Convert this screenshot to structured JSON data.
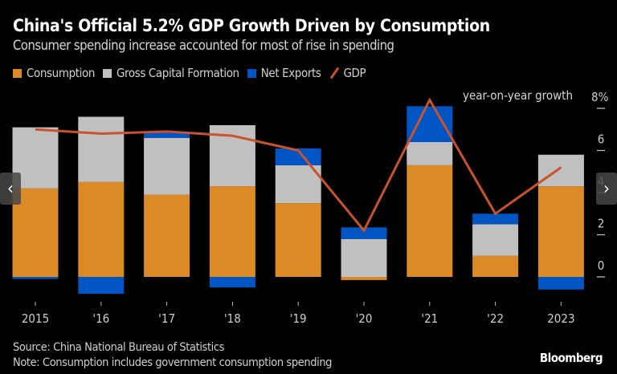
{
  "chart_data": {
    "type": "bar",
    "stacked": true,
    "title": "China's Official 5.2% GDP Growth Driven by Consumption",
    "subtitle": "Consumer spending increase accounted for most of rise in spending",
    "categories": [
      "2015",
      "'16",
      "'17",
      "'18",
      "'19",
      "'20",
      "'21",
      "'22",
      "2023"
    ],
    "series": [
      {
        "name": "Consumption",
        "type": "bar",
        "color": "#db8a25",
        "values": [
          4.2,
          4.5,
          3.9,
          4.3,
          3.5,
          -0.15,
          5.3,
          1.0,
          4.3
        ]
      },
      {
        "name": "Gross Capital Formation",
        "type": "bar",
        "color": "#c0c0c0",
        "values": [
          2.9,
          3.1,
          2.7,
          2.9,
          1.8,
          1.8,
          1.1,
          1.5,
          1.5
        ]
      },
      {
        "name": "Net Exports",
        "type": "bar",
        "color": "#0055c4",
        "values": [
          -0.1,
          -0.8,
          0.25,
          -0.5,
          0.8,
          0.55,
          1.7,
          0.5,
          -0.6
        ]
      },
      {
        "name": "GDP",
        "type": "line",
        "color": "#c8532c",
        "values": [
          7.0,
          6.8,
          6.9,
          6.7,
          6.0,
          2.2,
          8.4,
          3.0,
          5.2
        ]
      }
    ],
    "ylabel": "year-on-year growth",
    "yticks": [
      "8%",
      "6",
      "4",
      "2",
      "0"
    ],
    "ytick_values": [
      8,
      6,
      4,
      2,
      0
    ],
    "ylim": [
      -1,
      8.5
    ],
    "legend_position": "top-left",
    "grid": false
  },
  "footer": {
    "source": "Source: China National Bureau of Statistics",
    "note": "Note: Consumption includes government consumption spending",
    "brand": "Bloomberg"
  },
  "nav": {
    "prev": "‹",
    "next": "›"
  }
}
